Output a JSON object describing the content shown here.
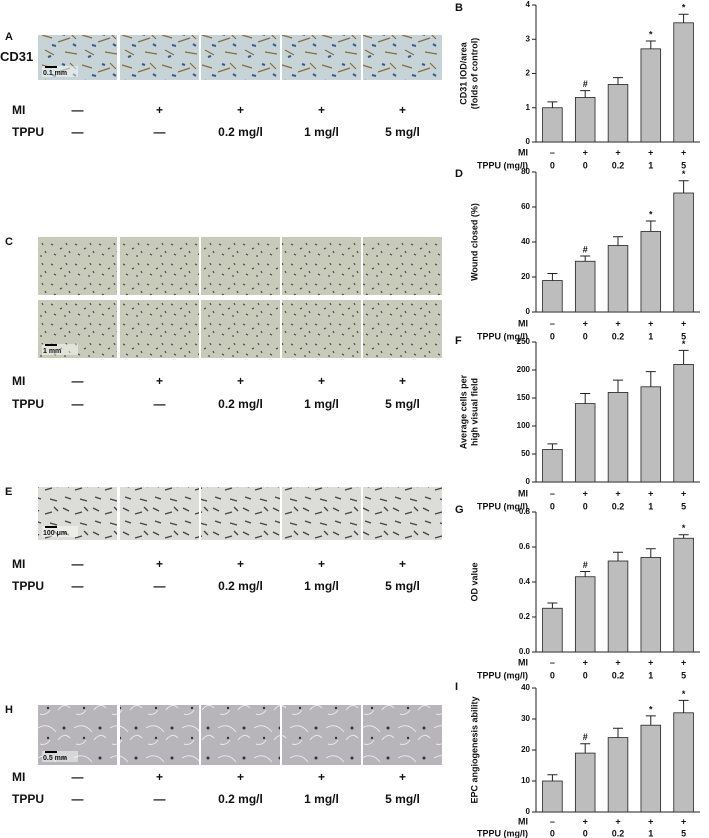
{
  "image_panels": [
    {
      "label": "A",
      "row_title": "CD31",
      "scale_bar": "0.1 mm",
      "row_labels": [
        "MI",
        "TPPU"
      ],
      "mi": [
        "—",
        "+",
        "+",
        "+",
        "+"
      ],
      "tppu": [
        "—",
        "—",
        "0.2 mg/l",
        "1 mg/l",
        "5 mg/l"
      ]
    },
    {
      "label": "C",
      "scale_bar": "1 mm",
      "row_labels": [
        "MI",
        "TPPU"
      ],
      "mi": [
        "—",
        "+",
        "+",
        "+",
        "+"
      ],
      "tppu": [
        "—",
        "—",
        "0.2 mg/l",
        "1 mg/l",
        "5 mg/l"
      ]
    },
    {
      "label": "E",
      "scale_bar": "100 μm",
      "row_labels": [
        "MI",
        "TPPU"
      ],
      "mi": [
        "—",
        "+",
        "+",
        "+",
        "+"
      ],
      "tppu": [
        "—",
        "—",
        "0.2 mg/l",
        "1 mg/l",
        "5 mg/l"
      ]
    },
    {
      "label": "H",
      "scale_bar": "0.5 mm",
      "row_labels": [
        "MI",
        "TPPU"
      ],
      "mi": [
        "—",
        "+",
        "+",
        "+",
        "+"
      ],
      "tppu": [
        "—",
        "—",
        "0.2 mg/l",
        "1 mg/l",
        "5 mg/l"
      ]
    }
  ],
  "chart_data": [
    {
      "type": "bar",
      "panel": "B",
      "ylabel": [
        "CD31 IOD/area",
        "(folds of control)"
      ],
      "row_labels": [
        "MI",
        "TPPU (mg/l)"
      ],
      "mi": [
        "–",
        "+",
        "+",
        "+",
        "+"
      ],
      "categories": [
        "0",
        "0",
        "0.2",
        "1",
        "5"
      ],
      "values": [
        1.0,
        1.3,
        1.68,
        2.72,
        3.48
      ],
      "errors": [
        0.17,
        0.2,
        0.2,
        0.23,
        0.25
      ],
      "markers": [
        null,
        "#",
        null,
        "*",
        "*"
      ],
      "ylim": [
        0,
        4
      ],
      "yticks": [
        0,
        1,
        2,
        3,
        4
      ],
      "color": "#bdbdbd"
    },
    {
      "type": "bar",
      "panel": "D",
      "ylabel": [
        "Wound closed (%)"
      ],
      "row_labels": [
        "MI",
        "TPPU (mg/l)"
      ],
      "mi": [
        "–",
        "+",
        "+",
        "+",
        "+"
      ],
      "categories": [
        "0",
        "0",
        "0.2",
        "1",
        "5"
      ],
      "values": [
        18,
        29,
        38,
        46,
        68
      ],
      "errors": [
        4,
        3,
        5,
        6,
        7
      ],
      "markers": [
        null,
        "#",
        null,
        "*",
        "*"
      ],
      "ylim": [
        0,
        80
      ],
      "yticks": [
        0,
        20,
        40,
        60,
        80
      ],
      "color": "#bdbdbd"
    },
    {
      "type": "bar",
      "panel": "F",
      "ylabel": [
        "Average cells per",
        "high visual field"
      ],
      "row_labels": [
        "MI",
        "TPPU (mg/l)"
      ],
      "mi": [
        "–",
        "+",
        "+",
        "+",
        "+"
      ],
      "categories": [
        "0",
        "0",
        "0.2",
        "1",
        "5"
      ],
      "values": [
        58,
        140,
        160,
        170,
        210
      ],
      "errors": [
        10,
        18,
        22,
        27,
        25
      ],
      "markers": [
        null,
        null,
        null,
        null,
        "*"
      ],
      "ylim": [
        0,
        250
      ],
      "yticks": [
        0,
        50,
        100,
        150,
        200,
        250
      ],
      "color": "#bdbdbd"
    },
    {
      "type": "bar",
      "panel": "G",
      "ylabel": [
        "OD value"
      ],
      "row_labels": [
        "MI",
        "TPPU (mg/l)"
      ],
      "mi": [
        "–",
        "+",
        "+",
        "+",
        "+"
      ],
      "categories": [
        "0",
        "0",
        "0.2",
        "1",
        "5"
      ],
      "values": [
        0.25,
        0.43,
        0.52,
        0.54,
        0.65
      ],
      "errors": [
        0.03,
        0.03,
        0.05,
        0.05,
        0.02
      ],
      "markers": [
        null,
        "#",
        null,
        null,
        "*"
      ],
      "ylim": [
        0,
        0.8
      ],
      "yticks": [
        {
          "value": 0,
          "label": "0.0"
        },
        0.2,
        0.4,
        0.6,
        0.8
      ],
      "color": "#bdbdbd"
    },
    {
      "type": "bar",
      "panel": "I",
      "ylabel": [
        "EPC angiogenesis ability"
      ],
      "row_labels": [
        "MI",
        "TPPU (mg/l)"
      ],
      "mi": [
        "–",
        "+",
        "+",
        "+",
        "+"
      ],
      "categories": [
        "0",
        "0",
        "0.2",
        "1",
        "5"
      ],
      "values": [
        10,
        19,
        24,
        28,
        32
      ],
      "errors": [
        2,
        3,
        3,
        3,
        4
      ],
      "markers": [
        null,
        "#",
        null,
        "*",
        "*"
      ],
      "ylim": [
        0,
        40
      ],
      "yticks": [
        0,
        10,
        20,
        30,
        40
      ],
      "color": "#bdbdbd"
    }
  ]
}
